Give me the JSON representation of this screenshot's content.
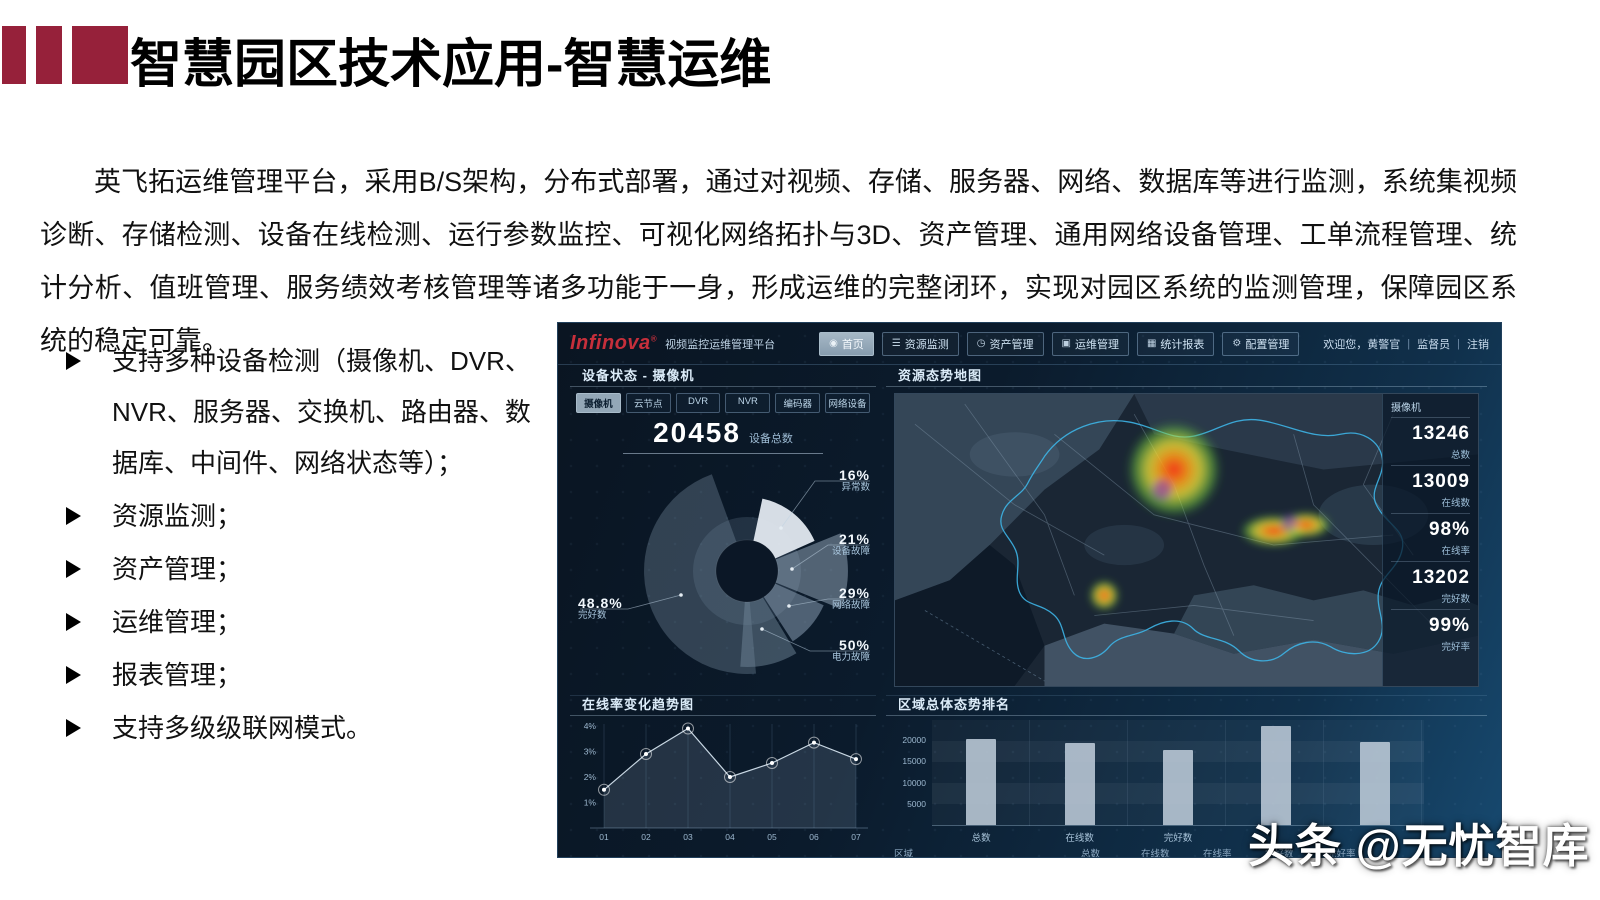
{
  "slide": {
    "title": "智慧园区技术应用-智慧运维",
    "paragraph": "英飞拓运维管理平台，采用B/S架构，分布式部署，通过对视频、存储、服务器、网络、数据库等进行监测，系统集视频诊断、存储检测、设备在线检测、运行参数监控、可视化网络拓扑与3D、资产管理、通用网络设备管理、工单流程管理、统计分析、值班管理、服务绩效考核管理等诸多功能于一身，形成运维的完整闭环，实现对园区系统的监测管理，保障园区系统的稳定可靠。",
    "bullets": [
      "支持多种设备检测（摄像机、DVR、NVR、服务器、交换机、路由器、数据库、中间件、网络状态等）；",
      "资源监测；",
      "资产管理；",
      "运维管理；",
      "报表管理；",
      "支持多级级联网模式。"
    ],
    "accent_color": "#96213A"
  },
  "watermark": {
    "text": "头条 @无忧智库"
  },
  "dashboard": {
    "logo": "Infinova",
    "logo_mark": "®",
    "logo_sub": "视频监控运维管理平台",
    "nav": [
      {
        "label": "首页",
        "icon": "home-icon",
        "glyph": "◉",
        "active": true
      },
      {
        "label": "资源监测",
        "icon": "resource-monitor-icon",
        "glyph": "☰",
        "active": false
      },
      {
        "label": "资产管理",
        "icon": "asset-management-icon",
        "glyph": "◷",
        "active": false
      },
      {
        "label": "运维管理",
        "icon": "ops-management-icon",
        "glyph": "▣",
        "active": false
      },
      {
        "label": "统计报表",
        "icon": "report-icon",
        "glyph": "▦",
        "active": false
      },
      {
        "label": "配置管理",
        "icon": "config-icon",
        "glyph": "⚙",
        "active": false
      }
    ],
    "welcome": "欢迎您，黄警官",
    "role": "监督员",
    "logout": "注销",
    "device_panel": {
      "title": "设备状态 - 摄像机",
      "tabs": [
        "摄像机",
        "云节点",
        "DVR",
        "NVR",
        "编码器",
        "网络设备"
      ],
      "active_tab": 0
    },
    "map_panel": {
      "title": "资源态势地图",
      "stats_header": "摄像机",
      "stats": [
        {
          "value": "13246",
          "label": "总数"
        },
        {
          "value": "13009",
          "label": "在线数"
        },
        {
          "value": "98%",
          "label": "在线率"
        },
        {
          "value": "13202",
          "label": "完好数"
        },
        {
          "value": "99%",
          "label": "完好率"
        }
      ],
      "boundary_color": "#3db4e6"
    },
    "trend_panel": {
      "title": "在线率变化趋势图"
    },
    "rank_panel": {
      "title": "区域总体态势排名",
      "footer": [
        "区域",
        "总数",
        "在线数",
        "在线率",
        "完好数",
        "完好率"
      ]
    }
  },
  "chart_data": [
    {
      "type": "pie",
      "title": "设备状态 - 摄像机",
      "total": "20458",
      "total_label": "设备总数",
      "slices": [
        {
          "label": "异常数",
          "pct": "16%",
          "value": 16
        },
        {
          "label": "设备故障",
          "pct": "21%",
          "value": 21
        },
        {
          "label": "网络故障",
          "pct": "29%",
          "value": 29
        },
        {
          "label": "电力故障",
          "pct": "50%",
          "value": 50
        },
        {
          "label": "完好数",
          "pct": "48.8%",
          "value": 48.8
        }
      ],
      "legend_position": "callouts"
    },
    {
      "type": "line",
      "title": "在线率变化趋势图",
      "x": [
        "01",
        "02",
        "03",
        "04",
        "05",
        "06",
        "07"
      ],
      "values": [
        1.5,
        2.9,
        3.9,
        2.0,
        2.55,
        3.35,
        2.7
      ],
      "yticks": [
        "1%",
        "2%",
        "3%",
        "4%"
      ],
      "ylim": [
        0,
        4.4
      ],
      "grid": "vertical"
    },
    {
      "type": "bar",
      "title": "区域总体态势排名",
      "categories": [
        "总数",
        "在线数",
        "完好数",
        "",
        ""
      ],
      "values": [
        20300,
        19300,
        17800,
        23400,
        19600
      ],
      "yticks": [
        5000,
        10000,
        15000,
        20000
      ],
      "ylim": [
        0,
        25000
      ],
      "grid": "banded"
    }
  ]
}
